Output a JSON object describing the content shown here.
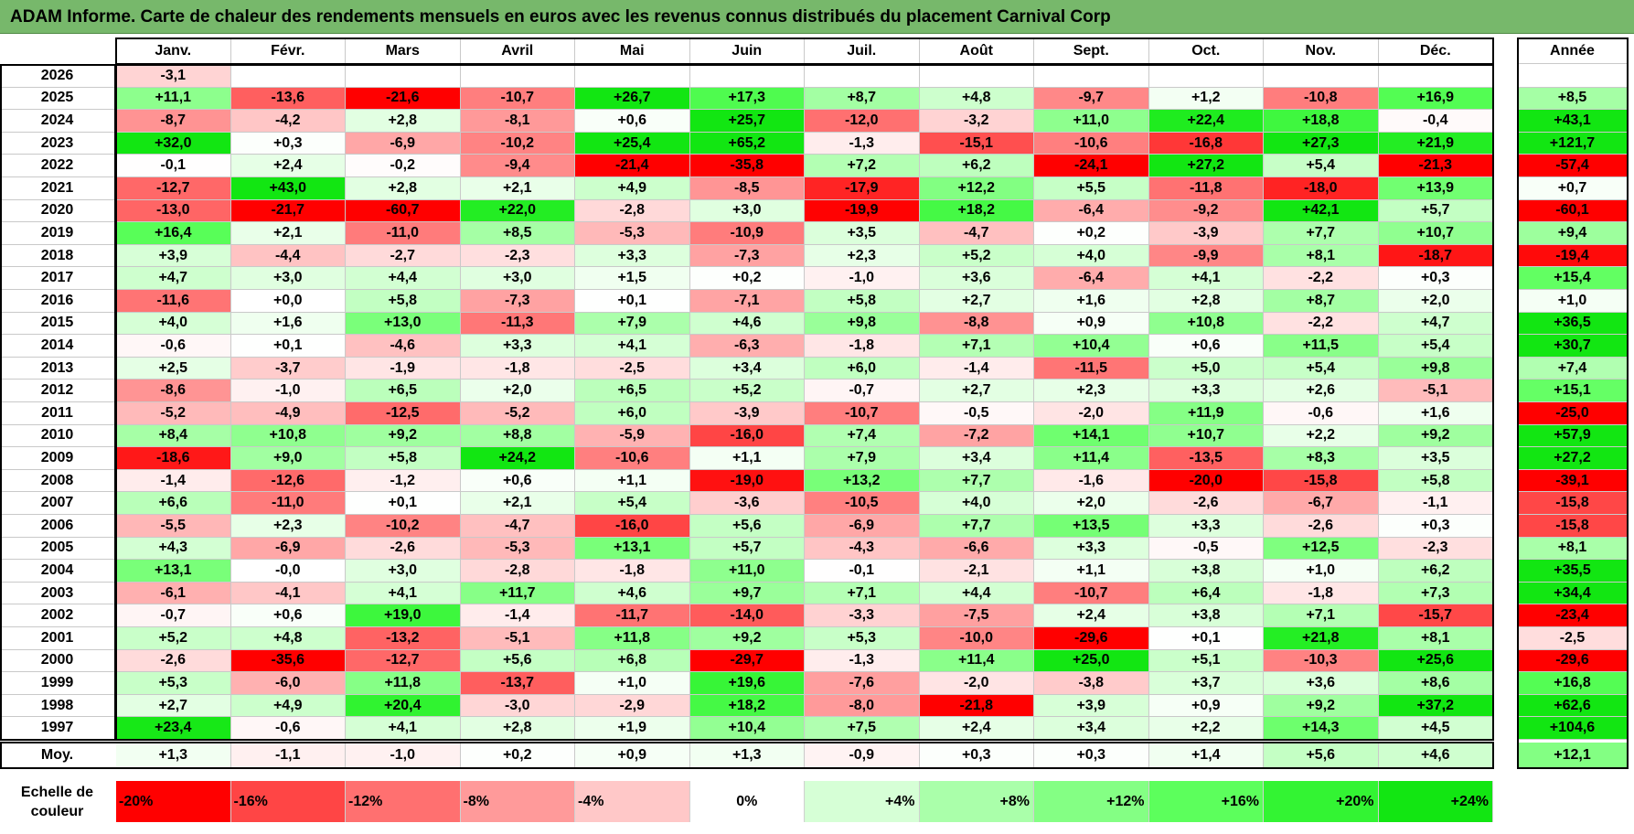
{
  "title": "ADAM Informe. Carte de chaleur des rendements mensuels en euros avec les revenus connus distribués du placement Carnival Corp",
  "chart_data": {
    "type": "heatmap",
    "title": "ADAM Informe. Carte de chaleur des rendements mensuels en euros avec les revenus connus distribués du placement Carnival Corp",
    "columns": [
      "Janv.",
      "Févr.",
      "Mars",
      "Avril",
      "Mai",
      "Juin",
      "Juil.",
      "Août",
      "Sept.",
      "Oct.",
      "Nov.",
      "Déc."
    ],
    "year_column_label": "Année",
    "average_label": "Moy.",
    "rows": [
      {
        "year": "2026",
        "months": [
          "-3,1",
          "",
          "",
          "",
          "",
          "",
          "",
          "",
          "",
          "",
          "",
          ""
        ],
        "annual": ""
      },
      {
        "year": "2025",
        "months": [
          "+11,1",
          "-13,6",
          "-21,6",
          "-10,7",
          "+26,7",
          "+17,3",
          "+8,7",
          "+4,8",
          "-9,7",
          "+1,2",
          "-10,8",
          "+16,9"
        ],
        "annual": "+8,5"
      },
      {
        "year": "2024",
        "months": [
          "-8,7",
          "-4,2",
          "+2,8",
          "-8,1",
          "+0,6",
          "+25,7",
          "-12,0",
          "-3,2",
          "+11,0",
          "+22,4",
          "+18,8",
          "-0,4"
        ],
        "annual": "+43,1"
      },
      {
        "year": "2023",
        "months": [
          "+32,0",
          "+0,3",
          "-6,9",
          "-10,2",
          "+25,4",
          "+65,2",
          "-1,3",
          "-15,1",
          "-10,6",
          "-16,8",
          "+27,3",
          "+21,9"
        ],
        "annual": "+121,7"
      },
      {
        "year": "2022",
        "months": [
          "-0,1",
          "+2,4",
          "-0,2",
          "-9,4",
          "-21,4",
          "-35,8",
          "+7,2",
          "+6,2",
          "-24,1",
          "+27,2",
          "+5,4",
          "-21,3"
        ],
        "annual": "-57,4"
      },
      {
        "year": "2021",
        "months": [
          "-12,7",
          "+43,0",
          "+2,8",
          "+2,1",
          "+4,9",
          "-8,5",
          "-17,9",
          "+12,2",
          "+5,5",
          "-11,8",
          "-18,0",
          "+13,9"
        ],
        "annual": "+0,7"
      },
      {
        "year": "2020",
        "months": [
          "-13,0",
          "-21,7",
          "-60,7",
          "+22,0",
          "-2,8",
          "+3,0",
          "-19,9",
          "+18,2",
          "-6,4",
          "-9,2",
          "+42,1",
          "+5,7"
        ],
        "annual": "-60,1"
      },
      {
        "year": "2019",
        "months": [
          "+16,4",
          "+2,1",
          "-11,0",
          "+8,5",
          "-5,3",
          "-10,9",
          "+3,5",
          "-4,7",
          "+0,2",
          "-3,9",
          "+7,7",
          "+10,7"
        ],
        "annual": "+9,4"
      },
      {
        "year": "2018",
        "months": [
          "+3,9",
          "-4,4",
          "-2,7",
          "-2,3",
          "+3,3",
          "-7,3",
          "+2,3",
          "+5,2",
          "+4,0",
          "-9,9",
          "+8,1",
          "-18,7"
        ],
        "annual": "-19,4"
      },
      {
        "year": "2017",
        "months": [
          "+4,7",
          "+3,0",
          "+4,4",
          "+3,0",
          "+1,5",
          "+0,2",
          "-1,0",
          "+3,6",
          "-6,4",
          "+4,1",
          "-2,2",
          "+0,3"
        ],
        "annual": "+15,4"
      },
      {
        "year": "2016",
        "months": [
          "-11,6",
          "+0,0",
          "+5,8",
          "-7,3",
          "+0,1",
          "-7,1",
          "+5,8",
          "+2,7",
          "+1,6",
          "+2,8",
          "+8,7",
          "+2,0"
        ],
        "annual": "+1,0"
      },
      {
        "year": "2015",
        "months": [
          "+4,0",
          "+1,6",
          "+13,0",
          "-11,3",
          "+7,9",
          "+4,6",
          "+9,8",
          "-8,8",
          "+0,9",
          "+10,8",
          "-2,2",
          "+4,7"
        ],
        "annual": "+36,5"
      },
      {
        "year": "2014",
        "months": [
          "-0,6",
          "+0,1",
          "-4,6",
          "+3,3",
          "+4,1",
          "-6,3",
          "-1,8",
          "+7,1",
          "+10,4",
          "+0,6",
          "+11,5",
          "+5,4"
        ],
        "annual": "+30,7"
      },
      {
        "year": "2013",
        "months": [
          "+2,5",
          "-3,7",
          "-1,9",
          "-1,8",
          "-2,5",
          "+3,4",
          "+6,0",
          "-1,4",
          "-11,5",
          "+5,0",
          "+5,4",
          "+9,8"
        ],
        "annual": "+7,4"
      },
      {
        "year": "2012",
        "months": [
          "-8,6",
          "-1,0",
          "+6,5",
          "+2,0",
          "+6,5",
          "+5,2",
          "-0,7",
          "+2,7",
          "+2,3",
          "+3,3",
          "+2,6",
          "-5,1"
        ],
        "annual": "+15,1"
      },
      {
        "year": "2011",
        "months": [
          "-5,2",
          "-4,9",
          "-12,5",
          "-5,2",
          "+6,0",
          "-3,9",
          "-10,7",
          "-0,5",
          "-2,0",
          "+11,9",
          "-0,6",
          "+1,6"
        ],
        "annual": "-25,0"
      },
      {
        "year": "2010",
        "months": [
          "+8,4",
          "+10,8",
          "+9,2",
          "+8,8",
          "-5,9",
          "-16,0",
          "+7,4",
          "-7,2",
          "+14,1",
          "+10,7",
          "+2,2",
          "+9,2"
        ],
        "annual": "+57,9"
      },
      {
        "year": "2009",
        "months": [
          "-18,6",
          "+9,0",
          "+5,8",
          "+24,2",
          "-10,6",
          "+1,1",
          "+7,9",
          "+3,4",
          "+11,4",
          "-13,5",
          "+8,3",
          "+3,5"
        ],
        "annual": "+27,2"
      },
      {
        "year": "2008",
        "months": [
          "-1,4",
          "-12,6",
          "-1,2",
          "+0,6",
          "+1,1",
          "-19,0",
          "+13,2",
          "+7,7",
          "-1,6",
          "-20,0",
          "-15,8",
          "+5,8"
        ],
        "annual": "-39,1"
      },
      {
        "year": "2007",
        "months": [
          "+6,6",
          "-11,0",
          "+0,1",
          "+2,1",
          "+5,4",
          "-3,6",
          "-10,5",
          "+4,0",
          "+2,0",
          "-2,6",
          "-6,7",
          "-1,1"
        ],
        "annual": "-15,8"
      },
      {
        "year": "2006",
        "months": [
          "-5,5",
          "+2,3",
          "-10,2",
          "-4,7",
          "-16,0",
          "+5,6",
          "-6,9",
          "+7,7",
          "+13,5",
          "+3,3",
          "-2,6",
          "+0,3"
        ],
        "annual": "-15,8"
      },
      {
        "year": "2005",
        "months": [
          "+4,3",
          "-6,9",
          "-2,6",
          "-5,3",
          "+13,1",
          "+5,7",
          "-4,3",
          "-6,6",
          "+3,3",
          "-0,5",
          "+12,5",
          "-2,3"
        ],
        "annual": "+8,1"
      },
      {
        "year": "2004",
        "months": [
          "+13,1",
          "-0,0",
          "+3,0",
          "-2,8",
          "-1,8",
          "+11,0",
          "-0,1",
          "-2,1",
          "+1,1",
          "+3,8",
          "+1,0",
          "+6,2"
        ],
        "annual": "+35,5"
      },
      {
        "year": "2003",
        "months": [
          "-6,1",
          "-4,1",
          "+4,1",
          "+11,7",
          "+4,6",
          "+9,7",
          "+7,1",
          "+4,4",
          "-10,7",
          "+6,4",
          "-1,8",
          "+7,3"
        ],
        "annual": "+34,4"
      },
      {
        "year": "2002",
        "months": [
          "-0,7",
          "+0,6",
          "+19,0",
          "-1,4",
          "-11,7",
          "-14,0",
          "-3,3",
          "-7,5",
          "+2,4",
          "+3,8",
          "+7,1",
          "-15,7"
        ],
        "annual": "-23,4"
      },
      {
        "year": "2001",
        "months": [
          "+5,2",
          "+4,8",
          "-13,2",
          "-5,1",
          "+11,8",
          "+9,2",
          "+5,3",
          "-10,0",
          "-29,6",
          "+0,1",
          "+21,8",
          "+8,1"
        ],
        "annual": "-2,5"
      },
      {
        "year": "2000",
        "months": [
          "-2,6",
          "-35,6",
          "-12,7",
          "+5,6",
          "+6,8",
          "-29,7",
          "-1,3",
          "+11,4",
          "+25,0",
          "+5,1",
          "-10,3",
          "+25,6"
        ],
        "annual": "-29,6"
      },
      {
        "year": "1999",
        "months": [
          "+5,3",
          "-6,0",
          "+11,8",
          "-13,7",
          "+1,0",
          "+19,6",
          "-7,6",
          "-2,0",
          "-3,8",
          "+3,7",
          "+3,6",
          "+8,6"
        ],
        "annual": "+16,8"
      },
      {
        "year": "1998",
        "months": [
          "+2,7",
          "+4,9",
          "+20,4",
          "-3,0",
          "-2,9",
          "+18,2",
          "-8,0",
          "-21,8",
          "+3,9",
          "+0,9",
          "+9,2",
          "+37,2"
        ],
        "annual": "+62,6"
      },
      {
        "year": "1997",
        "months": [
          "+23,4",
          "-0,6",
          "+4,1",
          "+2,8",
          "+1,9",
          "+10,4",
          "+7,5",
          "+2,4",
          "+3,4",
          "+2,2",
          "+14,3",
          "+4,5"
        ],
        "annual": "+104,6"
      }
    ],
    "averages": [
      "+1,3",
      "-1,1",
      "-1,0",
      "+0,2",
      "+0,9",
      "+1,3",
      "-0,9",
      "+0,3",
      "+0,3",
      "+1,4",
      "+5,6",
      "+4,6"
    ],
    "average_annual": "+12,1",
    "legend": {
      "label": "Echelle de couleur",
      "stops": [
        {
          "label": "-20%",
          "value": -20,
          "color": "#ff0000"
        },
        {
          "label": "-16%",
          "value": -16,
          "color": "#ff4545"
        },
        {
          "label": "-12%",
          "value": -12,
          "color": "#ff7070"
        },
        {
          "label": "-8%",
          "value": -8,
          "color": "#ff9a9a"
        },
        {
          "label": "-4%",
          "value": -4,
          "color": "#ffc8c8"
        },
        {
          "label": "0%",
          "value": 0,
          "color": "#ffffff"
        },
        {
          "label": "+4%",
          "value": 4,
          "color": "#d6ffd6"
        },
        {
          "label": "+8%",
          "value": 8,
          "color": "#aaffaa"
        },
        {
          "label": "+12%",
          "value": 12,
          "color": "#84ff84"
        },
        {
          "label": "+16%",
          "value": 16,
          "color": "#5cff5c"
        },
        {
          "label": "+20%",
          "value": 20,
          "color": "#33f433"
        },
        {
          "label": "+24%",
          "value": 24,
          "color": "#12e612"
        }
      ]
    }
  }
}
